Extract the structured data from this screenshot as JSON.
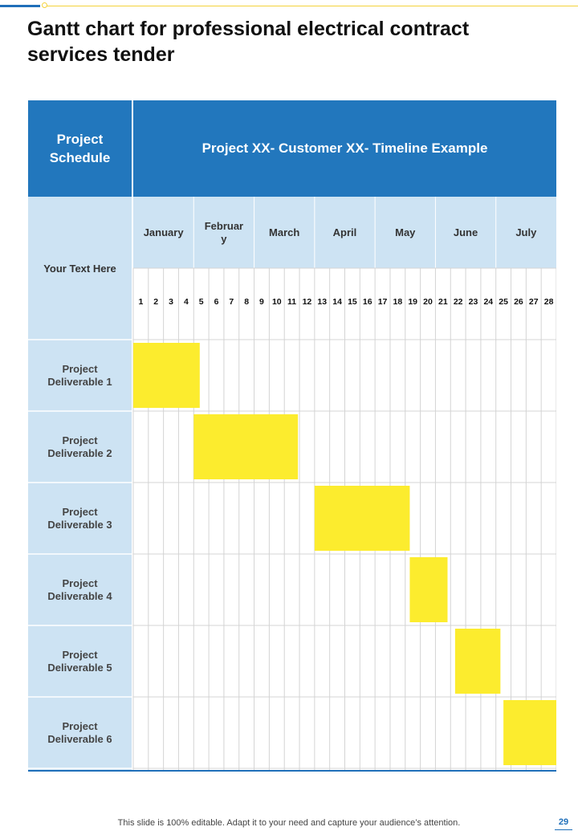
{
  "page": {
    "title": "Gantt chart for professional electrical contract services tender",
    "footer_note": "This slide is 100% editable. Adapt it to your need and capture your audience’s attention.",
    "page_number": "29"
  },
  "colors": {
    "header_blue": "#2277bd",
    "light_blue": "#cde3f3",
    "bar_yellow": "#fcec2e",
    "grid_line": "#d4d4d4",
    "accent_blue": "#1f6fb9"
  },
  "gantt": {
    "header_left": "Project\nSchedule",
    "header_right": "Project XX- Customer XX- Timeline Example",
    "side_label": "Your Text Here",
    "months": [
      "January",
      "Februar\ny",
      "March",
      "April",
      "May",
      "June",
      "July"
    ],
    "weeks": [
      "1",
      "2",
      "3",
      "4",
      "5",
      "6",
      "7",
      "8",
      "9",
      "10",
      "11",
      "12",
      "13",
      "14",
      "15",
      "16",
      "17",
      "18",
      "19",
      "20",
      "21",
      "22",
      "23",
      "24",
      "25",
      "26",
      "27",
      "28"
    ],
    "rows": [
      "Project\nDeliverable 1",
      "Project\nDeliverable 2",
      "Project\nDeliverable 3",
      "Project\nDeliverable 4",
      "Project\nDeliverable 5",
      "Project\nDeliverable 6"
    ]
  },
  "chart_data": {
    "type": "gantt",
    "x_unit": "week",
    "tasks": [
      {
        "name": "Project Deliverable 1",
        "start_week": 1,
        "end_week": 4.4
      },
      {
        "name": "Project Deliverable 2",
        "start_week": 5,
        "end_week": 10.9
      },
      {
        "name": "Project Deliverable 3",
        "start_week": 13,
        "end_week": 18.3
      },
      {
        "name": "Project Deliverable 4",
        "start_week": 19.3,
        "end_week": 20.8
      },
      {
        "name": "Project Deliverable 5",
        "start_week": 22.3,
        "end_week": 24.3
      },
      {
        "name": "Project Deliverable 6",
        "start_week": 25.5,
        "end_week": 28
      }
    ]
  }
}
